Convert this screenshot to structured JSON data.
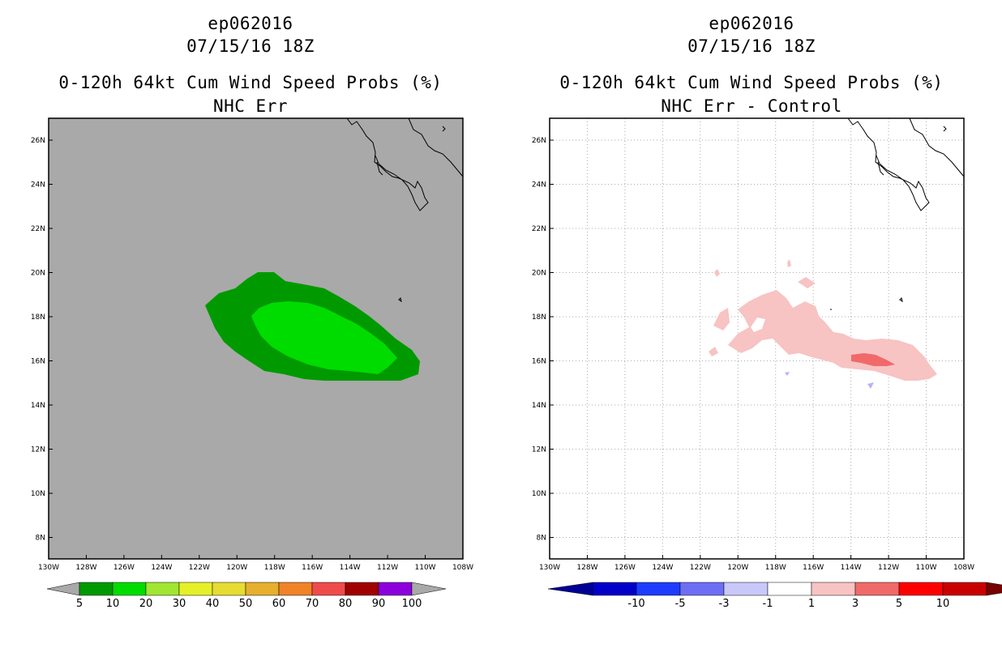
{
  "colors": {
    "land_bg": "#a9a9a9",
    "coast": "#000000",
    "grid": "#aaaaaa",
    "prob_5_10": "#009a00",
    "prob_10_20": "#00dc00",
    "diff_1_3": "#f7c3c3",
    "diff_3_5": "#f06a6a",
    "diff_neg": "#b4b4f5"
  },
  "left_panel": {
    "title_line1": "ep062016",
    "title_line2": "07/15/16 18Z",
    "title_line3": "0-120h 64kt Cum Wind Speed Probs (%)",
    "title_line4": "NHC Err",
    "legend": {
      "labels": [
        "5",
        "10",
        "20",
        "30",
        "40",
        "50",
        "60",
        "70",
        "80",
        "90",
        "100"
      ],
      "colors": [
        "#009a00",
        "#00dc00",
        "#a0e632",
        "#e6f028",
        "#e6dc32",
        "#e6af2d",
        "#f08228",
        "#f04b4b",
        "#a00000",
        "#8c00dc"
      ],
      "end_color": "#a9a9a9"
    }
  },
  "right_panel": {
    "title_line1": "ep062016",
    "title_line2": "07/15/16 18Z",
    "title_line3": "0-120h 64kt Cum Wind Speed Probs (%)",
    "title_line4": "NHC Err - Control",
    "legend": {
      "labels": [
        "-10",
        "-5",
        "-3",
        "-1",
        "1",
        "3",
        "5",
        "10"
      ],
      "colors": [
        "#0000c8",
        "#1e3cff",
        "#6e6ef5",
        "#c8c8fa",
        "#ffffff",
        "#f7c3c3",
        "#f06a6a",
        "#ff0000",
        "#c80000"
      ],
      "left_end_color": "#000096",
      "right_end_color": "#780000"
    }
  },
  "map": {
    "lon_labels": [
      "130W",
      "128W",
      "126W",
      "124W",
      "122W",
      "120W",
      "118W",
      "116W",
      "114W",
      "112W",
      "110W",
      "108W"
    ],
    "lat_labels": [
      "26N",
      "24N",
      "22N",
      "20N",
      "18N",
      "16N",
      "14N",
      "12N",
      "10N",
      "8N"
    ]
  }
}
